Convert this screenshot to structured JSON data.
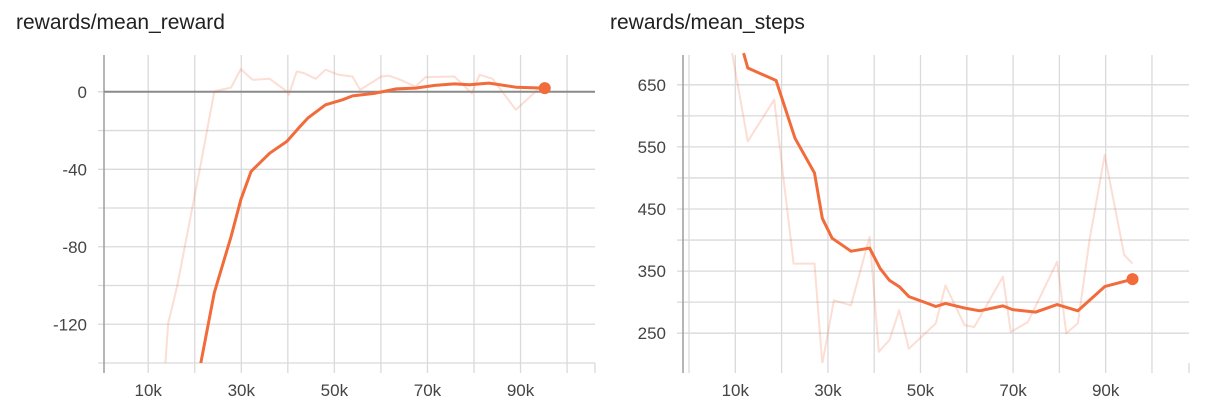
{
  "chart_data": [
    {
      "type": "line",
      "title": "rewards/mean_reward",
      "xlim": [
        0.5,
        106
      ],
      "ylim": [
        -140,
        19
      ],
      "x_grid": [
        0,
        10,
        20,
        30,
        40,
        50,
        60,
        70,
        80,
        90,
        100
      ],
      "y_grid": [
        -140,
        -120,
        -100,
        -80,
        -60,
        -40,
        -20,
        0
      ],
      "x_ticks": [
        {
          "v": 10,
          "label": "10k"
        },
        {
          "v": 30,
          "label": "30k"
        },
        {
          "v": 50,
          "label": "50k"
        },
        {
          "v": 70,
          "label": "70k"
        },
        {
          "v": 90,
          "label": "90k"
        }
      ],
      "y_ticks": [
        {
          "v": 0,
          "label": "0"
        },
        {
          "v": -40,
          "label": "-40"
        },
        {
          "v": -80,
          "label": "-80"
        },
        {
          "v": -120,
          "label": "-120"
        }
      ],
      "zero_line": true,
      "grid": true,
      "color": "#f26b3a",
      "series": [
        {
          "role": "raw",
          "x": [
            13.7,
            14.3,
            16.2,
            18.7,
            21.2,
            24.2,
            27.8,
            29.9,
            32.4,
            36.1,
            39.8,
            40.2,
            41.9,
            43.5,
            46,
            48.1,
            50.9,
            53.9,
            55.5,
            60.1,
            61.7,
            64.2,
            67.4,
            69.6,
            75.8,
            79.5,
            81.2,
            84,
            89,
            94
          ],
          "y": [
            -140,
            -119.4,
            -100.5,
            -69.5,
            -38.6,
            0.2,
            2.2,
            11.7,
            6.2,
            6.7,
            0.2,
            -1.5,
            10.5,
            9.6,
            6.7,
            11.4,
            8.8,
            7.9,
            1,
            7.9,
            8.3,
            6.2,
            2.7,
            7.6,
            7.9,
            -0.7,
            8.8,
            6.7,
            -9.3,
            1.9
          ]
        },
        {
          "role": "smoothed",
          "x": [
            21.3,
            24.2,
            27.8,
            29.9,
            32.1,
            36.1,
            39.8,
            42.3,
            44.3,
            48.1,
            51.8,
            53.9,
            58.8,
            63.3,
            67.4,
            71.6,
            75.8,
            79,
            83.2,
            89,
            95.2
          ],
          "y": [
            -140,
            -103.7,
            -74.7,
            -55.7,
            -41.1,
            -31.7,
            -25.6,
            -18.8,
            -13.6,
            -6.7,
            -4.1,
            -2.1,
            -0.7,
            1.5,
            1.9,
            3.3,
            4.1,
            3.6,
            4.5,
            2.4,
            1.9
          ]
        }
      ]
    },
    {
      "type": "line",
      "title": "rewards/mean_steps",
      "xlim": [
        -1.3,
        108
      ],
      "ylim": [
        202,
        698
      ],
      "x_grid": [
        0,
        10,
        20,
        30,
        40,
        50,
        60,
        70,
        80,
        90,
        100
      ],
      "y_grid": [
        250,
        300,
        350,
        400,
        450,
        500,
        550,
        600,
        650
      ],
      "x_ticks": [
        {
          "v": 10,
          "label": "10k"
        },
        {
          "v": 30,
          "label": "30k"
        },
        {
          "v": 50,
          "label": "50k"
        },
        {
          "v": 70,
          "label": "70k"
        },
        {
          "v": 90,
          "label": "90k"
        }
      ],
      "y_ticks": [
        {
          "v": 250,
          "label": "250"
        },
        {
          "v": 350,
          "label": "350"
        },
        {
          "v": 450,
          "label": "450"
        },
        {
          "v": 550,
          "label": "550"
        },
        {
          "v": 650,
          "label": "650"
        }
      ],
      "zero_line": false,
      "grid": true,
      "color": "#f26b3a",
      "series": [
        {
          "role": "raw",
          "x": [
            9.3,
            12.7,
            18.4,
            22.6,
            27.1,
            28.8,
            31.3,
            35,
            39,
            41,
            43.3,
            45.4,
            47.5,
            53.3,
            55.4,
            59.5,
            61.6,
            67.8,
            69.5,
            73.2,
            79.5,
            81.5,
            84,
            86.5,
            89.8,
            94,
            95.8
          ],
          "y": [
            701,
            559,
            626,
            362,
            362,
            201,
            303,
            295,
            405,
            220,
            239,
            287,
            225,
            266,
            327,
            263,
            260,
            341,
            252,
            268,
            365,
            250,
            266,
            400,
            537,
            376,
            362
          ]
        },
        {
          "role": "smoothed",
          "x": [
            11.8,
            12.7,
            18.8,
            22.9,
            27.1,
            28.8,
            30.9,
            35,
            39,
            41.3,
            43.3,
            45.4,
            47.5,
            50.8,
            53.3,
            55.4,
            59.9,
            62.8,
            67.8,
            69.9,
            74.9,
            79.5,
            84,
            89.8,
            95.8
          ],
          "y": [
            701,
            677,
            657,
            564,
            508,
            435,
            403,
            382,
            387,
            354,
            335,
            325,
            309,
            300,
            293,
            298,
            290,
            286,
            294,
            288,
            284,
            296,
            286,
            325,
            337
          ]
        }
      ]
    }
  ]
}
